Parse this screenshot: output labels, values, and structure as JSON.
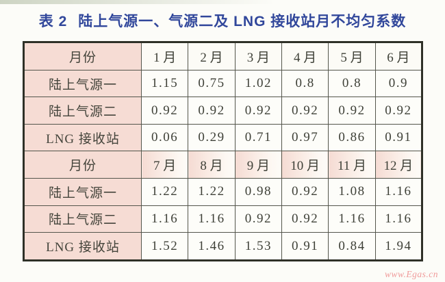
{
  "title": {
    "prefix": "表 2",
    "main": "陆上气源一、气源二及 LNG 接收站月不均匀系数"
  },
  "table": {
    "row_header_label": "月份",
    "sections": [
      {
        "months": [
          "1 月",
          "2 月",
          "3 月",
          "4 月",
          "5 月",
          "6 月"
        ],
        "rows": [
          {
            "label": "陆上气源一",
            "values": [
              "1.15",
              "0.75",
              "1.02",
              "0.8",
              "0.8",
              "0.9"
            ]
          },
          {
            "label": "陆上气源二",
            "values": [
              "0.92",
              "0.92",
              "0.92",
              "0.92",
              "0.92",
              "0.92"
            ]
          },
          {
            "label": "LNG 接收站",
            "values": [
              "0.06",
              "0.29",
              "0.71",
              "0.97",
              "0.86",
              "0.91"
            ]
          }
        ]
      },
      {
        "months": [
          "7 月",
          "8 月",
          "9 月",
          "10 月",
          "11 月",
          "12 月"
        ],
        "rows": [
          {
            "label": "陆上气源一",
            "values": [
              "1.22",
              "1.22",
              "0.98",
              "0.92",
              "1.08",
              "1.16"
            ]
          },
          {
            "label": "陆上气源二",
            "values": [
              "1.16",
              "1.16",
              "0.92",
              "0.92",
              "1.16",
              "1.16"
            ]
          },
          {
            "label": "LNG 接收站",
            "values": [
              "1.52",
              "1.46",
              "1.53",
              "0.91",
              "0.84",
              "1.94"
            ]
          }
        ]
      }
    ]
  },
  "watermark": {
    "text": "www.Egas.cn"
  },
  "colors": {
    "title_blue": "#31479b",
    "label_pink": "#f6dcd4",
    "watermark_pink": "#f09b9b",
    "border_dark": "#2e3027",
    "page_background": "#fcfcf8"
  }
}
